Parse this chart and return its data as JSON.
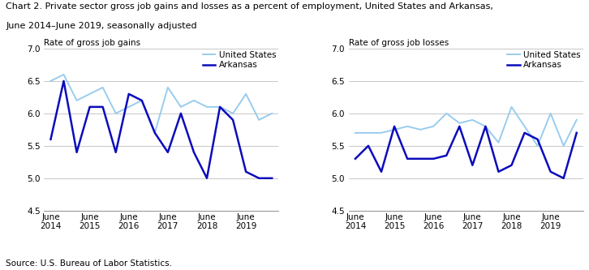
{
  "title_line1": "Chart 2. Private sector gross job gains and losses as a percent of employment, United States and Arkansas,",
  "title_line2": "June 2014–June 2019, seasonally adjusted",
  "title_fontsize": 8.0,
  "source": "Source: U.S. Bureau of Labor Statistics.",
  "ylabel_gains": "Rate of gross job gains",
  "ylabel_losses": "Rate of gross job losses",
  "ylim": [
    4.5,
    7.0
  ],
  "yticks": [
    4.5,
    5.0,
    5.5,
    6.0,
    6.5,
    7.0
  ],
  "xtick_labels": [
    "June\n2014",
    "June\n2015",
    "June\n2016",
    "June\n2017",
    "June\n2018",
    "June\n2019"
  ],
  "color_us": "#99ccee",
  "color_ar": "#0c0cbb",
  "gains_us": [
    6.5,
    6.6,
    6.2,
    6.3,
    6.4,
    6.0,
    6.1,
    6.2,
    5.7,
    6.4,
    6.1,
    6.2,
    6.1,
    6.1,
    6.0,
    6.3,
    5.9,
    6.0
  ],
  "gains_ar": [
    5.6,
    6.5,
    5.4,
    6.1,
    6.1,
    5.4,
    6.3,
    6.2,
    5.7,
    5.4,
    6.0,
    5.4,
    5.0,
    6.1,
    5.9,
    5.1,
    5.0,
    5.0
  ],
  "losses_us": [
    5.7,
    5.7,
    5.7,
    5.75,
    5.8,
    5.75,
    5.8,
    6.0,
    5.85,
    5.9,
    5.8,
    5.55,
    6.1,
    5.8,
    5.5,
    6.0,
    5.5,
    5.9
  ],
  "losses_ar": [
    5.3,
    5.5,
    5.1,
    5.8,
    5.3,
    5.3,
    5.3,
    5.35,
    5.8,
    5.2,
    5.8,
    5.1,
    5.2,
    5.7,
    5.6,
    5.1,
    5.0,
    5.7
  ],
  "n_points": 18,
  "xtick_positions": [
    0,
    3,
    6,
    9,
    12,
    15
  ],
  "legend_us": "United States",
  "legend_ar": "Arkansas"
}
